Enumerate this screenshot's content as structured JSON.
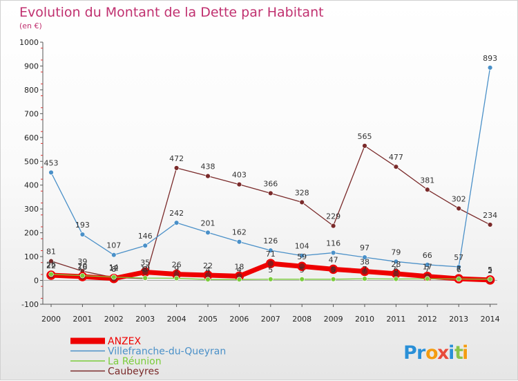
{
  "chart_data": {
    "type": "line",
    "title": "Evolution du Montant de la Dette par Habitant",
    "subtitle": "(en €)",
    "xlabel": "",
    "ylabel": "",
    "categories": [
      "2000",
      "2001",
      "2002",
      "2003",
      "2004",
      "2005",
      "2006",
      "2007",
      "2008",
      "2009",
      "2010",
      "2011",
      "2012",
      "2013",
      "2014"
    ],
    "ylim": [
      -100,
      1000
    ],
    "yticks": [
      "-100",
      "0",
      "100",
      "200",
      "300",
      "400",
      "500",
      "600",
      "700",
      "800",
      "900",
      "1000"
    ],
    "grid": false,
    "legend_position": "bottom-left",
    "series": [
      {
        "name": "ANZEX",
        "color": "#ee0000",
        "values": [
          22,
          16,
          8,
          35,
          26,
          22,
          18,
          71,
          59,
          47,
          38,
          28,
          17,
          7,
          2
        ],
        "labels": [
          "22",
          "16",
          "8",
          "35",
          "26",
          "22",
          "18",
          "71",
          "59",
          "47",
          "38",
          "28",
          "17",
          "7",
          "2"
        ]
      },
      {
        "name": "Villefranche-du-Queyran",
        "color": "#4a90c8",
        "values": [
          453,
          193,
          107,
          146,
          242,
          201,
          162,
          126,
          104,
          116,
          97,
          79,
          66,
          57,
          893
        ],
        "labels": [
          "453",
          "193",
          "107",
          "146",
          "242",
          "201",
          "162",
          "126",
          "104",
          "116",
          "97",
          "79",
          "66",
          "57",
          "893"
        ]
      },
      {
        "name": "La Réunion",
        "color": "#7acc3a",
        "values": [
          26,
          20,
          14,
          10,
          9,
          4,
          4,
          5,
          5,
          5,
          7,
          6,
          7,
          6,
          5
        ],
        "labels": [
          "26",
          "20",
          "14",
          "10",
          "9",
          "4",
          "4",
          "5",
          "5",
          "5",
          "7",
          "6",
          "7",
          "6",
          "5"
        ]
      },
      {
        "name": "Caubeyres",
        "color": "#7a2a2a",
        "values": [
          81,
          39,
          12,
          8,
          472,
          438,
          403,
          366,
          328,
          229,
          565,
          477,
          381,
          302,
          234
        ],
        "labels": [
          "81",
          "39",
          "12",
          "8",
          "472",
          "438",
          "403",
          "366",
          "328",
          "229",
          "565",
          "477",
          "381",
          "302",
          "234"
        ]
      }
    ]
  },
  "branding": {
    "logo": [
      "P",
      "r",
      "o",
      "x",
      "i",
      "t",
      "i"
    ],
    "logo_colors": [
      "#2a8fd6",
      "#2a8fd6",
      "#f39c12",
      "#e74c3c",
      "#2a8fd6",
      "#8bc34a",
      "#f39c12"
    ]
  }
}
